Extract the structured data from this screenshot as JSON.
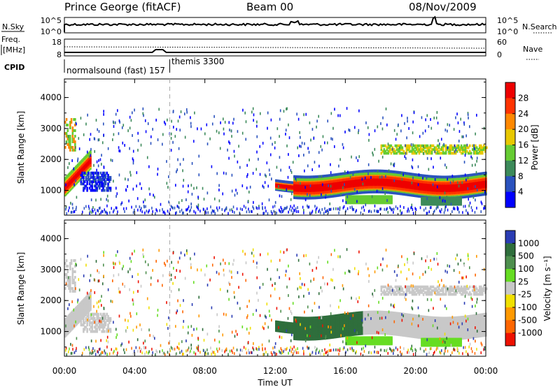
{
  "header": {
    "station": "Prince George (fitACF)",
    "beam": "Beam 00",
    "date": "08/Nov/2009"
  },
  "top_panels": {
    "nsky_label": "N.Sky",
    "nsky_ticks": [
      "10^5",
      "10^0"
    ],
    "nsearch_label": "N.Search",
    "nsearch_ticks": [
      "10^5",
      "10^0"
    ],
    "freq_label_1": "Freq.",
    "freq_label_2": "[MHz]",
    "freq_ticks": [
      "18",
      "8"
    ],
    "nave_label": "Nave",
    "nave_ticks": [
      "60",
      "0"
    ],
    "cpid_label": "CPID",
    "cpid_entries": [
      "normalsound (fast) 157",
      "themis 3300"
    ]
  },
  "colors": {
    "power_scale": [
      "#0000ff",
      "#2a52be",
      "#3c8a5a",
      "#66cc33",
      "#e8c800",
      "#ff8800",
      "#ff3300",
      "#ee0000"
    ],
    "velocity_scale": [
      "#2a3cb4",
      "#2f6e3c",
      "#4e8f4e",
      "#66dd22",
      "#c8c8c8",
      "#f0e000",
      "#ff9900",
      "#ff6600",
      "#ee1100"
    ]
  },
  "chart_data": [
    {
      "type": "heatmap",
      "name": "power",
      "ylabel": "Slant Range [km]",
      "y_ticks": [
        "1000",
        "2000",
        "3000",
        "4000"
      ],
      "ylim": [
        200,
        4600
      ],
      "colorbar_label": "Power [dB]",
      "colorbar_ticks": [
        "4",
        "8",
        "12",
        "16",
        "20",
        "24",
        "28"
      ],
      "colorbar_range": [
        0,
        32
      ]
    },
    {
      "type": "heatmap",
      "name": "velocity",
      "ylabel": "Slant Range [km]",
      "y_ticks": [
        "1000",
        "2000",
        "3000",
        "4000"
      ],
      "ylim": [
        200,
        4600
      ],
      "colorbar_label": "Velocity [m s⁻¹]",
      "colorbar_ticks": [
        "1000",
        "500",
        "100",
        "25",
        "-25",
        "-100",
        "-500",
        "-1000"
      ]
    }
  ],
  "time_axis": {
    "ticks": [
      "00:00",
      "04:00",
      "08:00",
      "12:00",
      "16:00",
      "20:00",
      "00:00"
    ],
    "label": "Time UT",
    "range_hours": [
      0,
      24
    ],
    "mode_change_hour": 6.0
  }
}
